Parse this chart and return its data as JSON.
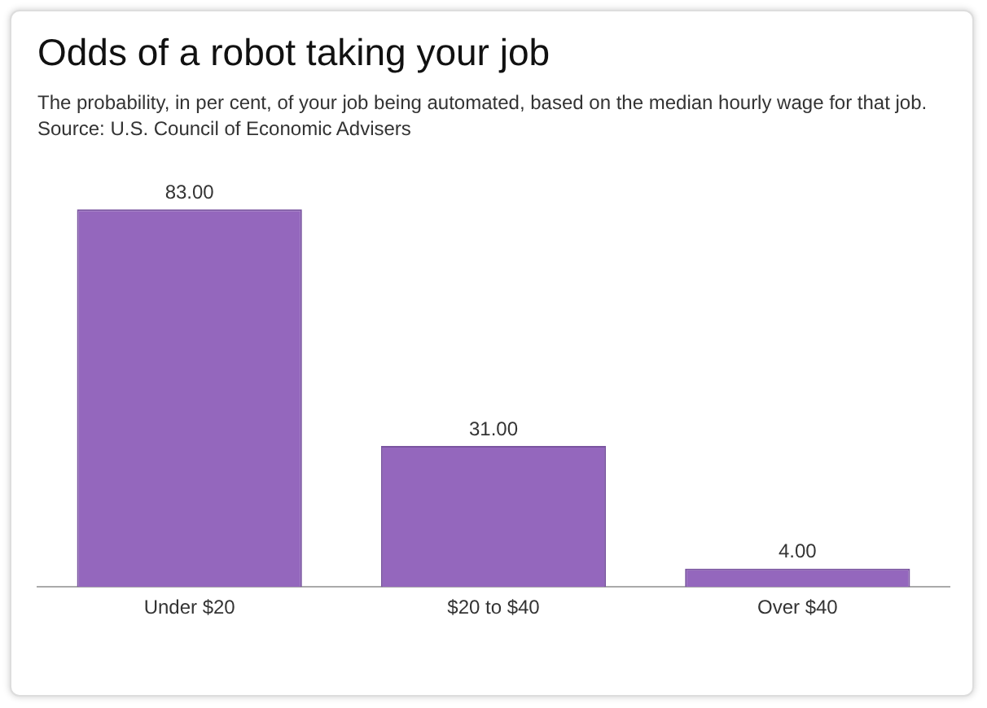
{
  "chart_data": {
    "type": "bar",
    "title": "Odds of a robot taking your job",
    "subtitle": "The probability, in per cent, of your job being automated, based on the median hourly wage for that job.",
    "annotations": [
      "Source: U.S. Council of Economic Advisers"
    ],
    "categories": [
      "Under $20",
      "$20 to $40",
      "Over $40"
    ],
    "values": [
      83,
      31,
      4
    ],
    "value_labels": [
      "83.00",
      "31.00",
      "4.00"
    ],
    "color": "#9467bd",
    "grid": false,
    "legend": false
  }
}
